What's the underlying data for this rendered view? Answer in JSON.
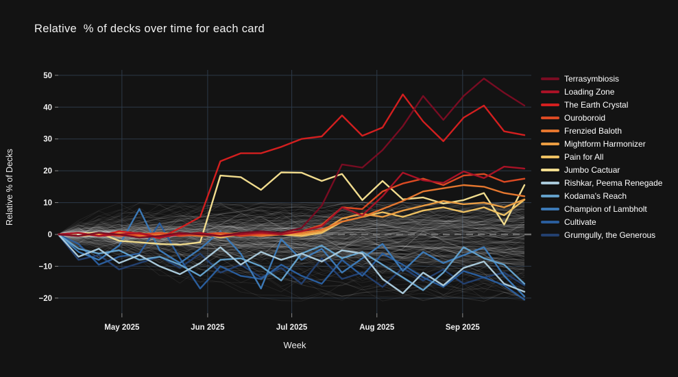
{
  "title": "Relative  % of decks over time for each card",
  "colors": {
    "page_bg": "#131313",
    "grid": "#2d3a49",
    "zero_line": "#707070",
    "text": "#f0f0f0",
    "background_lines": "rgba(255,255,255,0.08)"
  },
  "chart_data": {
    "type": "line",
    "xlabel": "Week",
    "ylabel": "Relative % of Decks",
    "n_points": 24,
    "x_unit": "weekly points, mid-April to late-September 2025",
    "ylim": [
      -25,
      52
    ],
    "grid": true,
    "zero_line": "dashed",
    "legend_position": "right",
    "x_ticks": [
      {
        "label": "May 2025",
        "week": 3.14
      },
      {
        "label": "Jun 2025",
        "week": 7.37
      },
      {
        "label": "Jul 2025",
        "week": 11.52
      },
      {
        "label": "Aug 2025",
        "week": 15.72
      },
      {
        "label": "Sep 2025",
        "week": 19.95
      }
    ],
    "y_ticks": [
      50,
      40,
      30,
      20,
      10,
      0,
      -10,
      -20
    ],
    "series": [
      {
        "name": "Terrasymbiosis",
        "color": "#780c22",
        "values": [
          0,
          -0.5,
          0.5,
          0,
          -1,
          -0.5,
          0.5,
          0,
          -0.5,
          0.5,
          1,
          0.5,
          2,
          9,
          22,
          21,
          26.5,
          34,
          43.5,
          36,
          43.5,
          49,
          44.5,
          40.5
        ]
      },
      {
        "name": "Loading Zone",
        "color": "#a91226",
        "values": [
          0,
          0.5,
          -0.5,
          0,
          0.5,
          -1,
          0,
          0.5,
          -0.5,
          0,
          0.5,
          0,
          1,
          2.5,
          8.5,
          6,
          12,
          19.4,
          17,
          16.2,
          19.8,
          17.7,
          21.3,
          20.7
        ]
      },
      {
        "name": "The Earth Crystal",
        "color": "#d31f1f",
        "values": [
          0,
          0.5,
          -0.5,
          1,
          0.3,
          -1.2,
          2,
          5.5,
          23,
          25.5,
          25.5,
          27.5,
          30,
          30.8,
          37.4,
          31,
          33.6,
          44,
          35.5,
          29.3,
          36.7,
          40.5,
          32.4,
          31.2
        ]
      },
      {
        "name": "Ouroboroid",
        "color": "#dc4a23",
        "values": [
          0,
          -0.5,
          0.5,
          -0.5,
          0,
          0.5,
          -0.5,
          0,
          0.5,
          -0.5,
          0,
          0.5,
          1,
          3,
          8.5,
          8,
          13.5,
          16,
          17.5,
          15.5,
          18.5,
          19,
          16.5,
          17.5
        ]
      },
      {
        "name": "Frenzied Baloth",
        "color": "#e5772f",
        "values": [
          0,
          0.5,
          -0.5,
          0,
          -0.5,
          0,
          0.5,
          -0.5,
          0,
          0.5,
          -0.5,
          0,
          0.5,
          1.5,
          4,
          5.5,
          8,
          10.5,
          13.5,
          14.5,
          15.5,
          15,
          13,
          12
        ]
      },
      {
        "name": "Mightform Harmonizer",
        "color": "#eb9d42",
        "values": [
          0,
          -0.5,
          0,
          0.5,
          -0.5,
          0.5,
          0,
          -0.5,
          0.5,
          0,
          -0.5,
          0.5,
          0,
          1,
          5,
          6.5,
          5.5,
          7.5,
          9,
          10.5,
          9.5,
          10,
          8.5,
          11
        ]
      },
      {
        "name": "Pain for All",
        "color": "#eec162",
        "values": [
          0,
          0.5,
          -0.5,
          0,
          0.5,
          -0.5,
          0,
          0.5,
          -1,
          0,
          0.5,
          0,
          -0.5,
          0.5,
          4,
          5.5,
          7,
          5.5,
          7.5,
          8.5,
          7,
          8.5,
          6,
          10.9
        ]
      },
      {
        "name": "Jumbo Cactuar",
        "color": "#f1dc8e",
        "values": [
          0,
          0.3,
          0.5,
          -2,
          -2.5,
          -3,
          -3.2,
          -2.5,
          18.5,
          18,
          14,
          19.5,
          19.4,
          16.8,
          19,
          10.8,
          16.8,
          11,
          11.6,
          9.7,
          10.8,
          13,
          3.1,
          15.5
        ]
      },
      {
        "name": "Rishkar, Peema Renegade",
        "color": "#a9c9da",
        "values": [
          0,
          -7,
          -4.5,
          -9,
          -6.5,
          -10,
          -12.5,
          -9,
          -4,
          -9.5,
          -5.5,
          -8,
          -6,
          -8.5,
          -5,
          -6,
          -14,
          -18.5,
          -12,
          -16,
          -10.5,
          -8.5,
          -15.5,
          -18
        ]
      },
      {
        "name": "Kodama's Reach",
        "color": "#63a0ca",
        "values": [
          0,
          -4.5,
          -6,
          -5,
          -8,
          -7,
          -9.5,
          -13,
          -8,
          -7.5,
          -10,
          -14.5,
          -6,
          -3.5,
          -7.5,
          -5.5,
          -9.5,
          -13.5,
          -17.5,
          -12,
          -4,
          -7.5,
          -9.5,
          -15.5
        ]
      },
      {
        "name": "Champion of Lambholt",
        "color": "#3c79b6",
        "values": [
          0,
          -5.5,
          -8,
          -3.5,
          8,
          -5,
          -9,
          -4.5,
          1,
          -6,
          -17,
          -1.5,
          -8,
          -4.5,
          -12,
          -7.5,
          -3,
          -11.5,
          -5.5,
          -9,
          -6.5,
          -4,
          -13,
          -19.5
        ]
      },
      {
        "name": "Cultivate",
        "color": "#2a5d9c",
        "values": [
          0,
          -3,
          -9.5,
          -7,
          -6,
          3.5,
          -7.5,
          -17,
          -10,
          -13,
          -14,
          -9.5,
          -13,
          -15.5,
          -8,
          -13,
          -6,
          -9.5,
          -13.5,
          -16.5,
          -11.5,
          -13.5,
          -16,
          -20.5
        ]
      },
      {
        "name": "Grumgully, the Generous",
        "color": "#23406f",
        "values": [
          0,
          -8,
          -6.5,
          -11,
          -9,
          -7,
          -10.5,
          -6,
          -12,
          -9.5,
          -13.5,
          -10.5,
          -15.5,
          -7.5,
          -14,
          -12,
          -16.5,
          -10.5,
          -14.5,
          -11,
          -15.5,
          -13.5,
          -12,
          -16
        ]
      }
    ],
    "background_series": {
      "description": "Unhighlighted cards: ~200 translucent gray lines fanning out from 0 into a dense band roughly between +10 and -21",
      "count": 210,
      "color": "rgba(255,255,255,0.08)"
    }
  }
}
